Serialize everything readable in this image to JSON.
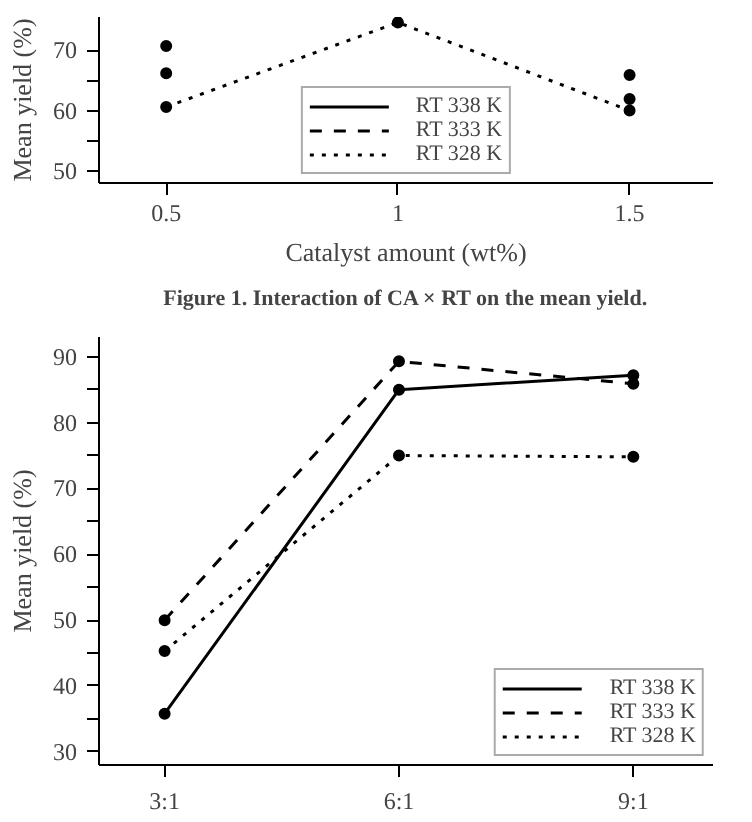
{
  "chart_data": [
    {
      "type": "line",
      "x": [
        0.5,
        1.0,
        1.5
      ],
      "xlabel": "Catalyst amount (wt%)",
      "ylabel": "Mean yield (%)",
      "xlim": [
        0.355,
        1.68
      ],
      "xticks": [
        0.5,
        1.0,
        1.5
      ],
      "ylim": [
        48,
        75.5
      ],
      "yticks": [
        50,
        {
          "value": 55,
          "label": null
        },
        60,
        {
          "value": 65,
          "label": null
        },
        70
      ],
      "marker": "circle",
      "legend": "bottom",
      "grid": false,
      "annotations": [
        "Figure 1. Interaction of CA × RT on the mean yield."
      ],
      "series": [
        {
          "name": "RT 338 K",
          "color": "#000000",
          "line_style": "solid",
          "values": [
            66.2,
            null,
            61.9
          ]
        },
        {
          "name": "RT 333 K",
          "color": "#000000",
          "line_style": "dashed",
          "values": [
            70.7,
            null,
            65.9
          ]
        },
        {
          "name": "RT 328 K",
          "color": "#000000",
          "line_style": "dotted",
          "values": [
            60.6,
            74.6,
            60
          ]
        }
      ]
    },
    {
      "type": "line",
      "categories": [
        "3:1",
        "6:1",
        "9:1"
      ],
      "ylabel": "Mean yield (%)",
      "ylim": [
        28,
        93
      ],
      "yticks": [
        30,
        {
          "value": 35,
          "label": null
        },
        40,
        {
          "value": 45,
          "label": null
        },
        50,
        {
          "value": 55,
          "label": null
        },
        60,
        {
          "value": 65,
          "label": null
        },
        70,
        {
          "value": 75,
          "label": null
        },
        80,
        {
          "value": 85,
          "label": null
        },
        90
      ],
      "marker": "circle",
      "legend": "bottom right",
      "grid": false,
      "series": [
        {
          "name": "RT 338 K",
          "color": "#000000",
          "line_style": "solid",
          "values": [
            35.8,
            85,
            87.2
          ]
        },
        {
          "name": "RT 333 K",
          "color": "#000000",
          "line_style": "dashed",
          "values": [
            50,
            89.3,
            85.9
          ]
        },
        {
          "name": "RT 328 K",
          "color": "#000000",
          "line_style": "dotted",
          "values": [
            45.3,
            75,
            74.8
          ]
        }
      ]
    }
  ]
}
